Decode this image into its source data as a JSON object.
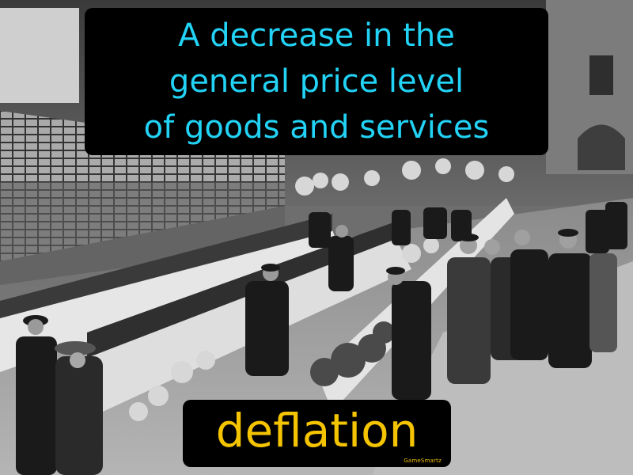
{
  "definition": {
    "lines": [
      "A decrease in the",
      "general price level",
      "of goods and services"
    ]
  },
  "term": "deflation",
  "brand": "GameSmartz",
  "colors": {
    "definition_text": "#22d3f5",
    "term_text": "#f5c400",
    "box_background": "#000000"
  }
}
